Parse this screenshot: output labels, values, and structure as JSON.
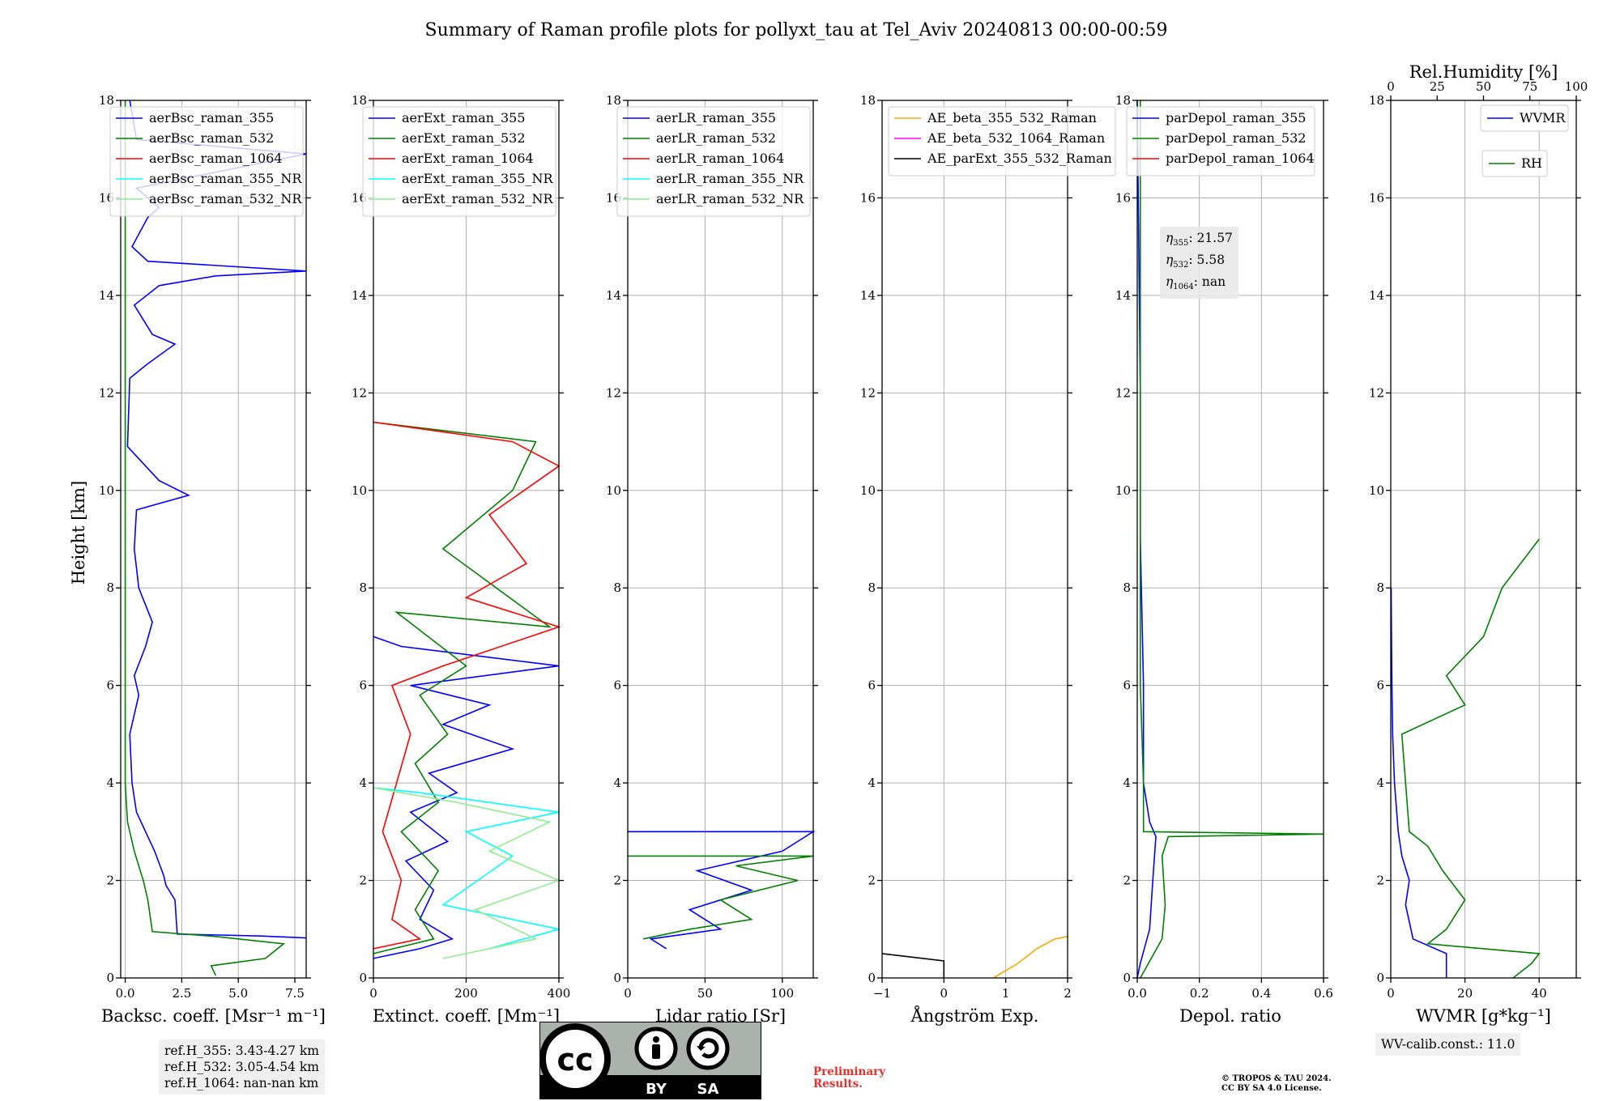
{
  "title": "Summary of Raman profile plots for pollyxt_tau at Tel_Aviv 20240813 00:00-00:59",
  "ylabel": "Height [km]",
  "y_ticks": [
    "0",
    "2",
    "4",
    "6",
    "8",
    "10",
    "12",
    "14",
    "16",
    "18"
  ],
  "ref_box": {
    "line1": "ref.H_355: 3.43-4.27 km",
    "line2": "ref.H_532: 3.05-4.54 km",
    "line3": "ref.H_1064: nan-nan km"
  },
  "eta_box": {
    "eta355": ": 21.57",
    "eta532": ": 5.58",
    "eta1064": ": nan"
  },
  "wv_calib": "WV-calib.const.: 11.0",
  "preliminary": {
    "line1": "Preliminary",
    "line2": "Results."
  },
  "copyright": {
    "line1": "© TROPOS & TAU 2024.",
    "line2": "CC BY SA 4.0 License."
  },
  "cc_badge": {
    "by": "BY",
    "sa": "SA"
  },
  "colors": {
    "blue": "#0000ff",
    "green": "#008000",
    "red": "#ff0000",
    "cyan": "#00ffff",
    "lightgreen": "#90ee90",
    "orange": "#ffa500",
    "magenta": "#ff00ff",
    "black": "#000000"
  },
  "chart_data": [
    {
      "type": "line",
      "id": "bsc",
      "xlabel": "Backsc. coeff. [Msr⁻¹ m⁻¹]",
      "xlim": [
        -0.2,
        8
      ],
      "ylim": [
        0,
        18
      ],
      "x_ticks": [
        "0.0",
        "2.5",
        "5.0",
        "7.5"
      ],
      "legend": [
        "aerBsc_raman_355",
        "aerBsc_raman_532",
        "aerBsc_raman_1064",
        "aerBsc_raman_355_NR",
        "aerBsc_raman_532_NR"
      ],
      "series": [
        {
          "name": "aerBsc_raman_355",
          "color": "blue",
          "points": [
            [
              8,
              0.82
            ],
            [
              6,
              0.86
            ],
            [
              2.3,
              0.9
            ],
            [
              2.2,
              1.6
            ],
            [
              1.8,
              1.9
            ],
            [
              1.7,
              2.1
            ],
            [
              1.3,
              2.6
            ],
            [
              0.5,
              3.4
            ],
            [
              0.3,
              4.0
            ],
            [
              0.2,
              5.0
            ],
            [
              0.6,
              5.8
            ],
            [
              0.4,
              6.2
            ],
            [
              0.9,
              6.8
            ],
            [
              1.2,
              7.3
            ],
            [
              0.6,
              8.0
            ],
            [
              0.4,
              8.8
            ],
            [
              0.5,
              9.6
            ],
            [
              2.8,
              9.9
            ],
            [
              1.5,
              10.2
            ],
            [
              0.1,
              10.9
            ],
            [
              0.2,
              12.3
            ],
            [
              1.0,
              12.6
            ],
            [
              2.2,
              13.0
            ],
            [
              1.2,
              13.2
            ],
            [
              0.4,
              13.8
            ],
            [
              1.5,
              14.2
            ],
            [
              4.0,
              14.4
            ],
            [
              8.0,
              14.5
            ],
            [
              1.0,
              14.7
            ],
            [
              0.3,
              15.0
            ],
            [
              1.0,
              15.6
            ],
            [
              1.5,
              15.8
            ],
            [
              0.5,
              16.2
            ],
            [
              8,
              16.9
            ],
            [
              0.5,
              17.2
            ],
            [
              0.2,
              18
            ]
          ]
        },
        {
          "name": "aerBsc_raman_532",
          "color": "green",
          "points": [
            [
              4.0,
              0.05
            ],
            [
              3.8,
              0.25
            ],
            [
              6.2,
              0.4
            ],
            [
              7.0,
              0.7
            ],
            [
              4.0,
              0.85
            ],
            [
              1.2,
              0.95
            ],
            [
              1.0,
              1.6
            ],
            [
              0.8,
              2.0
            ],
            [
              0.4,
              2.6
            ],
            [
              0.1,
              3.2
            ],
            [
              0.0,
              4.0
            ],
            [
              0.0,
              18
            ]
          ]
        }
      ]
    },
    {
      "type": "line",
      "id": "ext",
      "xlabel": "Extinct. coeff. [Mm⁻¹]",
      "xlim": [
        0,
        400
      ],
      "ylim": [
        0,
        18
      ],
      "x_ticks": [
        "0",
        "200",
        "400"
      ],
      "legend": [
        "aerExt_raman_355",
        "aerExt_raman_532",
        "aerExt_raman_1064",
        "aerExt_raman_355_NR",
        "aerExt_raman_532_NR"
      ],
      "series": [
        {
          "name": "aerExt_raman_355",
          "color": "blue",
          "points": [
            [
              0,
              0.4
            ],
            [
              100,
              0.6
            ],
            [
              170,
              0.8
            ],
            [
              100,
              1.2
            ],
            [
              130,
              1.8
            ],
            [
              70,
              2.4
            ],
            [
              160,
              2.8
            ],
            [
              80,
              3.4
            ],
            [
              180,
              3.8
            ],
            [
              120,
              4.2
            ],
            [
              300,
              4.7
            ],
            [
              150,
              5.2
            ],
            [
              250,
              5.6
            ],
            [
              80,
              6.0
            ],
            [
              400,
              6.4
            ],
            [
              60,
              6.8
            ],
            [
              0,
              7.0
            ]
          ]
        },
        {
          "name": "aerExt_raman_532",
          "color": "green",
          "points": [
            [
              0,
              0.5
            ],
            [
              130,
              0.8
            ],
            [
              90,
              1.4
            ],
            [
              140,
              2.2
            ],
            [
              60,
              3.0
            ],
            [
              140,
              3.6
            ],
            [
              90,
              4.4
            ],
            [
              160,
              5.0
            ],
            [
              100,
              5.8
            ],
            [
              200,
              6.4
            ],
            [
              50,
              7.5
            ],
            [
              380,
              7.2
            ],
            [
              150,
              8.8
            ],
            [
              300,
              10.0
            ],
            [
              350,
              11.0
            ],
            [
              0,
              11.4
            ]
          ]
        },
        {
          "name": "aerExt_raman_1064",
          "color": "red",
          "points": [
            [
              0,
              0.6
            ],
            [
              100,
              0.8
            ],
            [
              40,
              1.2
            ],
            [
              60,
              2.0
            ],
            [
              20,
              3.0
            ],
            [
              50,
              4.0
            ],
            [
              80,
              5.0
            ],
            [
              40,
              6.0
            ],
            [
              150,
              6.4
            ],
            [
              400,
              7.2
            ],
            [
              200,
              7.8
            ],
            [
              330,
              8.5
            ],
            [
              250,
              9.5
            ],
            [
              400,
              10.5
            ],
            [
              300,
              11.0
            ],
            [
              0,
              11.4
            ]
          ]
        },
        {
          "name": "aerExt_raman_355_NR",
          "color": "cyan",
          "points": [
            [
              250,
              0.6
            ],
            [
              400,
              1.0
            ],
            [
              150,
              1.5
            ],
            [
              300,
              2.5
            ],
            [
              200,
              3.0
            ],
            [
              400,
              3.4
            ],
            [
              100,
              3.8
            ],
            [
              0,
              3.9
            ]
          ]
        },
        {
          "name": "aerExt_raman_532_NR",
          "color": "lightgreen",
          "points": [
            [
              150,
              0.4
            ],
            [
              350,
              0.8
            ],
            [
              220,
              1.4
            ],
            [
              400,
              2.0
            ],
            [
              250,
              2.6
            ],
            [
              380,
              3.2
            ],
            [
              180,
              3.6
            ],
            [
              0,
              3.9
            ]
          ]
        }
      ]
    },
    {
      "type": "line",
      "id": "lr",
      "xlabel": "Lidar ratio [Sr]",
      "xlim": [
        0,
        120
      ],
      "ylim": [
        0,
        18
      ],
      "x_ticks": [
        "0",
        "50",
        "100"
      ],
      "legend": [
        "aerLR_raman_355",
        "aerLR_raman_532",
        "aerLR_raman_1064",
        "aerLR_raman_355_NR",
        "aerLR_raman_532_NR"
      ],
      "series": [
        {
          "name": "aerLR_raman_355",
          "color": "blue",
          "points": [
            [
              25,
              0.6
            ],
            [
              15,
              0.8
            ],
            [
              60,
              1.0
            ],
            [
              40,
              1.4
            ],
            [
              80,
              1.8
            ],
            [
              45,
              2.2
            ],
            [
              100,
              2.6
            ],
            [
              120,
              3.0
            ],
            [
              0,
              3.0
            ]
          ]
        },
        {
          "name": "aerLR_raman_532",
          "color": "green",
          "points": [
            [
              10,
              0.8
            ],
            [
              40,
              1.0
            ],
            [
              80,
              1.2
            ],
            [
              60,
              1.6
            ],
            [
              110,
              2.0
            ],
            [
              70,
              2.3
            ],
            [
              120,
              2.5
            ],
            [
              0,
              2.5
            ]
          ]
        }
      ]
    },
    {
      "type": "line",
      "id": "ae",
      "xlabel": "Ångström Exp.",
      "xlim": [
        -1,
        2
      ],
      "ylim": [
        0,
        18
      ],
      "x_ticks": [
        "−1",
        "0",
        "1",
        "2"
      ],
      "legend": [
        "AE_beta_355_532_Raman",
        "AE_beta_532_1064_Raman",
        "AE_parExt_355_532_Raman"
      ],
      "series": [
        {
          "name": "AE_beta_355_532_Raman",
          "color": "orange",
          "points": [
            [
              0.8,
              0.0
            ],
            [
              1.2,
              0.3
            ],
            [
              1.5,
              0.6
            ],
            [
              1.8,
              0.8
            ],
            [
              2,
              0.85
            ]
          ]
        },
        {
          "name": "AE_parExt_355_532_Raman",
          "color": "black",
          "points": [
            [
              -1,
              0.5
            ],
            [
              0,
              0.35
            ],
            [
              0,
              0.0
            ]
          ]
        }
      ]
    },
    {
      "type": "line",
      "id": "depol",
      "xlabel": "Depol. ratio",
      "xlim": [
        0,
        0.6
      ],
      "ylim": [
        0,
        18
      ],
      "x_ticks": [
        "0.0",
        "0.2",
        "0.4",
        "0.6"
      ],
      "legend": [
        "parDepol_raman_355",
        "parDepol_raman_532",
        "parDepol_raman_1064"
      ],
      "series": [
        {
          "name": "parDepol_raman_355",
          "color": "blue",
          "points": [
            [
              0.0,
              0.0
            ],
            [
              0.01,
              0.3
            ],
            [
              0.04,
              1.0
            ],
            [
              0.05,
              2.0
            ],
            [
              0.06,
              2.9
            ],
            [
              0.04,
              3.2
            ],
            [
              0.02,
              4.0
            ],
            [
              0.02,
              6.0
            ],
            [
              0.01,
              9.0
            ],
            [
              0.01,
              12
            ],
            [
              0.0,
              18
            ]
          ]
        },
        {
          "name": "parDepol_raman_532",
          "color": "green",
          "points": [
            [
              0.01,
              0.0
            ],
            [
              0.08,
              0.8
            ],
            [
              0.09,
              1.5
            ],
            [
              0.08,
              2.5
            ],
            [
              0.1,
              2.9
            ],
            [
              0.6,
              2.95
            ],
            [
              0.02,
              3.0
            ],
            [
              0.02,
              4.0
            ],
            [
              0.01,
              6.0
            ],
            [
              0.01,
              18
            ]
          ]
        }
      ]
    },
    {
      "type": "line",
      "id": "wv",
      "xlabel": "WVMR [g*kg⁻¹]",
      "xlim": [
        0,
        50
      ],
      "ylim": [
        0,
        18
      ],
      "x_ticks": [
        "0",
        "20",
        "40"
      ],
      "top_axis": {
        "label": "Rel.Humidity [%]",
        "ticks": [
          "0",
          "25",
          "50",
          "75",
          "100"
        ],
        "xlim": [
          0,
          100
        ]
      },
      "legend": [
        "WVMR",
        "RH"
      ],
      "series": [
        {
          "name": "WVMR",
          "color": "blue",
          "points": [
            [
              15,
              0.0
            ],
            [
              15,
              0.5
            ],
            [
              6,
              0.8
            ],
            [
              4,
              1.5
            ],
            [
              5,
              2.0
            ],
            [
              3,
              2.5
            ],
            [
              2,
              3.0
            ],
            [
              1,
              4.0
            ],
            [
              0.5,
              5.0
            ],
            [
              0.3,
              6.0
            ],
            [
              0.2,
              7.0
            ],
            [
              0.1,
              8.0
            ]
          ]
        },
        {
          "name": "RH",
          "color": "green",
          "points": [
            [
              33,
              0.0
            ],
            [
              38,
              0.3
            ],
            [
              40,
              0.5
            ],
            [
              10,
              0.7
            ],
            [
              15,
              1.0
            ],
            [
              20,
              1.6
            ],
            [
              14,
              2.2
            ],
            [
              10,
              2.7
            ],
            [
              5,
              3.0
            ],
            [
              4,
              4.0
            ],
            [
              3,
              5.0
            ],
            [
              20,
              5.6
            ],
            [
              15,
              6.2
            ],
            [
              25,
              7.0
            ],
            [
              30,
              8.0
            ],
            [
              40,
              9.0
            ]
          ]
        }
      ]
    }
  ]
}
